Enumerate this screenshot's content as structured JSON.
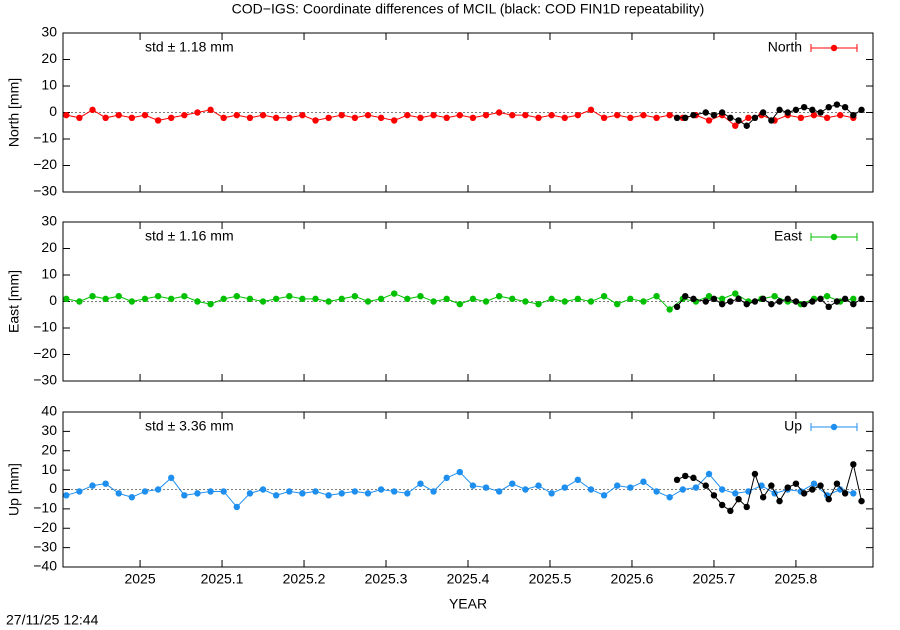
{
  "title": "COD−IGS: Coordinate differences of MCIL (black: COD FIN1D repeatability)",
  "timestamp": "27/11/25 12:44",
  "chart_data": [
    {
      "type": "line",
      "ylabel": "North [mm]",
      "annotation": "std ± 1.18 mm",
      "annotation_color": "#ff0000",
      "legend": "top-right",
      "xlim": [
        2024.906,
        2025.894
      ],
      "xticks": [
        2025,
        2025.1,
        2025.2,
        2025.3,
        2025.4,
        2025.5,
        2025.6,
        2025.7,
        2025.8
      ],
      "ylim": [
        -30,
        30
      ],
      "yticks": [
        {
          "value": -30,
          "label": "−30"
        },
        {
          "value": -20,
          "label": "−20"
        },
        {
          "value": -10,
          "label": "−10"
        },
        0,
        10,
        20,
        30
      ],
      "x": [
        2024.91,
        2024.926,
        2024.942,
        2024.958,
        2024.974,
        2024.99,
        2025.006,
        2025.022,
        2025.038,
        2025.054,
        2025.07,
        2025.086,
        2025.102,
        2025.118,
        2025.134,
        2025.15,
        2025.166,
        2025.182,
        2025.198,
        2025.214,
        2025.23,
        2025.246,
        2025.262,
        2025.278,
        2025.294,
        2025.31,
        2025.326,
        2025.342,
        2025.358,
        2025.374,
        2025.39,
        2025.406,
        2025.422,
        2025.438,
        2025.454,
        2025.47,
        2025.486,
        2025.502,
        2025.518,
        2025.534,
        2025.55,
        2025.566,
        2025.582,
        2025.598,
        2025.614,
        2025.63,
        2025.646,
        2025.662,
        2025.678,
        2025.694,
        2025.71,
        2025.726,
        2025.742,
        2025.758,
        2025.774,
        2025.79,
        2025.806,
        2025.822,
        2025.838,
        2025.854,
        2025.87
      ],
      "series": [
        {
          "name": "North",
          "color": "#ff0000",
          "values": [
            -1,
            -2,
            1,
            -2,
            -1,
            -2,
            -1,
            -3,
            -2,
            -1,
            0,
            1,
            -2,
            -1,
            -2,
            -1,
            -2,
            -2,
            -1,
            -3,
            -2,
            -1,
            -2,
            -1,
            -2,
            -3,
            -1,
            -2,
            -1,
            -2,
            -1,
            -2,
            -1,
            0,
            -1,
            -1,
            -2,
            -1,
            -2,
            -1,
            1,
            -2,
            -1,
            -2,
            -1,
            -2,
            -1,
            -2,
            -1,
            -3,
            -1,
            -5,
            -2,
            -1,
            -3,
            -1,
            -2,
            -1,
            -2,
            -1,
            -2
          ]
        },
        {
          "color": "#000000",
          "x": [
            2025.655,
            2025.665,
            2025.675,
            2025.69,
            2025.7,
            2025.71,
            2025.72,
            2025.73,
            2025.74,
            2025.75,
            2025.76,
            2025.77,
            2025.78,
            2025.79,
            2025.8,
            2025.81,
            2025.82,
            2025.83,
            2025.84,
            2025.85,
            2025.86,
            2025.87,
            2025.88
          ],
          "values": [
            -2,
            -2,
            -1,
            0,
            -1,
            0,
            -2,
            -3,
            -5,
            -2,
            0,
            -3,
            1,
            0,
            1,
            2,
            1,
            0,
            2,
            3,
            2,
            -1,
            1
          ]
        }
      ]
    },
    {
      "type": "line",
      "ylabel": "East [mm]",
      "annotation": "std ± 1.16 mm",
      "annotation_color": "#00c000",
      "legend": "top-right",
      "xlim": [
        2024.906,
        2025.894
      ],
      "xticks": [
        2025,
        2025.1,
        2025.2,
        2025.3,
        2025.4,
        2025.5,
        2025.6,
        2025.7,
        2025.8
      ],
      "ylim": [
        -30,
        30
      ],
      "yticks": [
        {
          "value": -30,
          "label": "−30"
        },
        {
          "value": -20,
          "label": "−20"
        },
        {
          "value": -10,
          "label": "−10"
        },
        0,
        10,
        20,
        30
      ],
      "x": [
        2024.91,
        2024.926,
        2024.942,
        2024.958,
        2024.974,
        2024.99,
        2025.006,
        2025.022,
        2025.038,
        2025.054,
        2025.07,
        2025.086,
        2025.102,
        2025.118,
        2025.134,
        2025.15,
        2025.166,
        2025.182,
        2025.198,
        2025.214,
        2025.23,
        2025.246,
        2025.262,
        2025.278,
        2025.294,
        2025.31,
        2025.326,
        2025.342,
        2025.358,
        2025.374,
        2025.39,
        2025.406,
        2025.422,
        2025.438,
        2025.454,
        2025.47,
        2025.486,
        2025.502,
        2025.518,
        2025.534,
        2025.55,
        2025.566,
        2025.582,
        2025.598,
        2025.614,
        2025.63,
        2025.646,
        2025.662,
        2025.678,
        2025.694,
        2025.71,
        2025.726,
        2025.742,
        2025.758,
        2025.774,
        2025.79,
        2025.806,
        2025.822,
        2025.838,
        2025.854,
        2025.87
      ],
      "series": [
        {
          "name": "East",
          "color": "#00c000",
          "values": [
            1,
            0,
            2,
            1,
            2,
            0,
            1,
            2,
            1,
            2,
            0,
            -1,
            1,
            2,
            1,
            0,
            1,
            2,
            1,
            1,
            0,
            1,
            2,
            0,
            1,
            3,
            1,
            2,
            0,
            1,
            -1,
            1,
            0,
            2,
            1,
            0,
            -1,
            1,
            0,
            1,
            0,
            2,
            -1,
            1,
            0,
            2,
            -3,
            1,
            0,
            2,
            1,
            3,
            0,
            1,
            2,
            0,
            -1,
            1,
            2,
            0,
            1
          ]
        },
        {
          "color": "#000000",
          "x": [
            2025.655,
            2025.665,
            2025.675,
            2025.69,
            2025.7,
            2025.71,
            2025.72,
            2025.73,
            2025.74,
            2025.75,
            2025.76,
            2025.77,
            2025.78,
            2025.79,
            2025.8,
            2025.81,
            2025.82,
            2025.83,
            2025.84,
            2025.85,
            2025.86,
            2025.87,
            2025.88
          ],
          "values": [
            -2,
            2,
            1,
            0,
            1,
            -1,
            0,
            1,
            -1,
            0,
            1,
            -1,
            0,
            1,
            0,
            -1,
            0,
            1,
            -2,
            0,
            1,
            -1,
            1
          ]
        }
      ]
    },
    {
      "type": "line",
      "ylabel": "Up [mm]",
      "xlabel": "YEAR",
      "annotation": "std ± 3.36 mm",
      "annotation_color": "#1e8fef",
      "legend": "top-right",
      "xlim": [
        2024.906,
        2025.894
      ],
      "xticks": [
        2025,
        2025.1,
        2025.2,
        2025.3,
        2025.4,
        2025.5,
        2025.6,
        2025.7,
        2025.8
      ],
      "ylim": [
        -40,
        40
      ],
      "yticks": [
        {
          "value": -40,
          "label": "−40"
        },
        {
          "value": -30,
          "label": "−30"
        },
        {
          "value": -20,
          "label": "−20"
        },
        {
          "value": -10,
          "label": "−10"
        },
        0,
        10,
        20,
        30,
        40
      ],
      "x": [
        2024.91,
        2024.926,
        2024.942,
        2024.958,
        2024.974,
        2024.99,
        2025.006,
        2025.022,
        2025.038,
        2025.054,
        2025.07,
        2025.086,
        2025.102,
        2025.118,
        2025.134,
        2025.15,
        2025.166,
        2025.182,
        2025.198,
        2025.214,
        2025.23,
        2025.246,
        2025.262,
        2025.278,
        2025.294,
        2025.31,
        2025.326,
        2025.342,
        2025.358,
        2025.374,
        2025.39,
        2025.406,
        2025.422,
        2025.438,
        2025.454,
        2025.47,
        2025.486,
        2025.502,
        2025.518,
        2025.534,
        2025.55,
        2025.566,
        2025.582,
        2025.598,
        2025.614,
        2025.63,
        2025.646,
        2025.662,
        2025.678,
        2025.694,
        2025.71,
        2025.726,
        2025.742,
        2025.758,
        2025.774,
        2025.79,
        2025.806,
        2025.822,
        2025.838,
        2025.854,
        2025.87
      ],
      "series": [
        {
          "name": "Up",
          "color": "#1e8fef",
          "values": [
            -3,
            -1,
            2,
            3,
            -2,
            -4,
            -1,
            0,
            6,
            -3,
            -2,
            -1,
            -1,
            -9,
            -2,
            0,
            -3,
            -1,
            -2,
            -1,
            -3,
            -2,
            -1,
            -2,
            0,
            -1,
            -2,
            3,
            -1,
            6,
            9,
            2,
            1,
            -1,
            3,
            0,
            2,
            -2,
            1,
            5,
            0,
            -3,
            2,
            1,
            4,
            -1,
            -4,
            0,
            1,
            8,
            0,
            -2,
            -1,
            2,
            -2,
            0,
            -1,
            3,
            -3,
            0,
            -2
          ]
        },
        {
          "color": "#000000",
          "x": [
            2025.655,
            2025.665,
            2025.675,
            2025.69,
            2025.7,
            2025.71,
            2025.72,
            2025.73,
            2025.74,
            2025.75,
            2025.76,
            2025.77,
            2025.78,
            2025.79,
            2025.8,
            2025.81,
            2025.82,
            2025.83,
            2025.84,
            2025.85,
            2025.86,
            2025.87,
            2025.88
          ],
          "values": [
            5,
            7,
            6,
            2,
            -3,
            -8,
            -11,
            -5,
            -9,
            8,
            -4,
            2,
            -6,
            1,
            3,
            -2,
            0,
            2,
            -5,
            3,
            -2,
            13,
            -6
          ]
        }
      ]
    }
  ]
}
